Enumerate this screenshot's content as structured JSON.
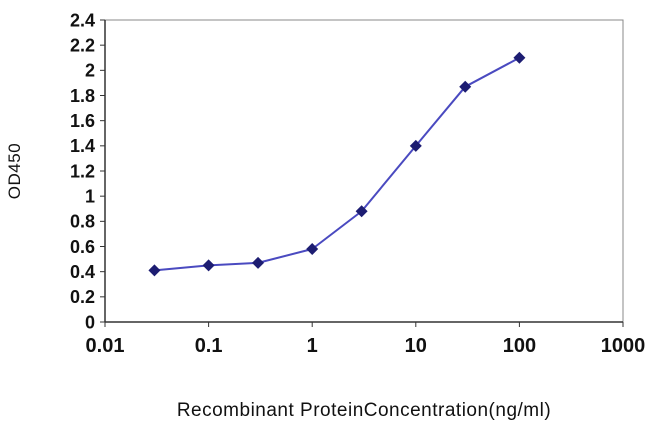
{
  "figure": {
    "background": "#ffffff"
  },
  "chart_data": {
    "type": "line",
    "x": [
      0.03,
      0.1,
      0.3,
      1,
      3,
      10,
      30,
      100
    ],
    "y": [
      0.41,
      0.45,
      0.47,
      0.58,
      0.88,
      1.4,
      1.87,
      2.1
    ],
    "title": "",
    "xlabel": "Recombinant ProteinConcentration(ng/ml)",
    "ylabel": "OD450",
    "x_scale": "log",
    "xlim": [
      0.01,
      1000
    ],
    "ylim": [
      0,
      2.4
    ],
    "x_ticks": [
      0.01,
      0.1,
      1,
      10,
      100,
      1000
    ],
    "x_tick_labels": [
      "0.01",
      "0.1",
      "1",
      "10",
      "100",
      "1000"
    ],
    "y_ticks": [
      0,
      0.2,
      0.4,
      0.6,
      0.8,
      1,
      1.2,
      1.4,
      1.6,
      1.8,
      2,
      2.2,
      2.4
    ],
    "y_tick_labels": [
      "0",
      "0.2",
      "0.4",
      "0.6",
      "0.8",
      "1",
      "1.2",
      "1.4",
      "1.6",
      "1.8",
      "2",
      "2.2",
      "2.4"
    ],
    "grid": false,
    "legend": "none",
    "marker": "diamond",
    "colors": {
      "line": "#4a4ac0",
      "marker": "#1d1d72",
      "axis": "#333333",
      "frame": "#888888",
      "text": "#111111"
    }
  }
}
